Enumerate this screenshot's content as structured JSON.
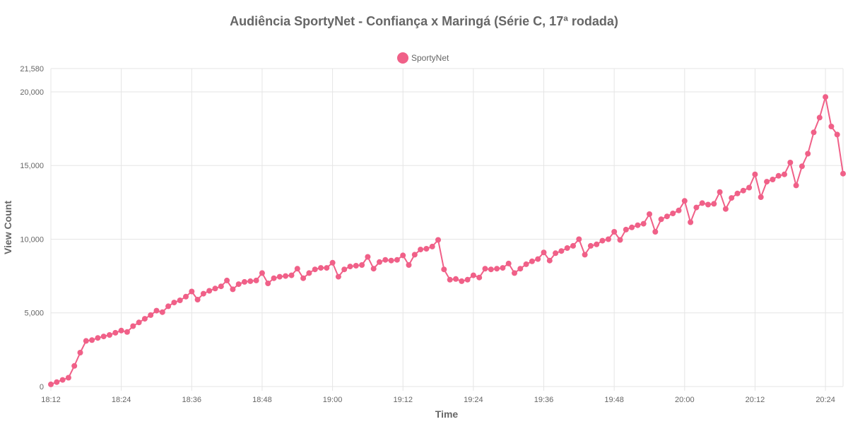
{
  "chart_data": {
    "type": "line",
    "title": "Audiência SportyNet - Confiança x Maringá (Série C, 17ª rodada)",
    "xlabel": "Time",
    "ylabel": "View Count",
    "x_start": "18:12",
    "x_step_minutes": 1,
    "x_ticks": [
      "18:12",
      "18:24",
      "18:36",
      "18:48",
      "19:00",
      "19:12",
      "19:24",
      "19:36",
      "19:48",
      "20:00",
      "20:12",
      "20:24"
    ],
    "y_ticks": [
      0,
      5000,
      10000,
      15000,
      20000,
      21580
    ],
    "y_tick_labels": [
      "0",
      "5,000",
      "10,000",
      "15,000",
      "20,000",
      "21,580"
    ],
    "ylim": [
      0,
      21580
    ],
    "grid": true,
    "legend_position": "top",
    "colors": {
      "series": "#f06088",
      "grid": "#e5e5e5",
      "text": "#666666"
    },
    "series": [
      {
        "name": "SportyNet",
        "values": [
          150,
          300,
          450,
          600,
          1400,
          2300,
          3100,
          3150,
          3300,
          3400,
          3500,
          3650,
          3800,
          3700,
          4100,
          4350,
          4600,
          4850,
          5150,
          5050,
          5450,
          5700,
          5850,
          6100,
          6450,
          5900,
          6300,
          6500,
          6650,
          6800,
          7200,
          6600,
          6950,
          7100,
          7150,
          7200,
          7700,
          7000,
          7350,
          7450,
          7500,
          7550,
          8000,
          7350,
          7700,
          7950,
          8050,
          8050,
          8400,
          7450,
          7950,
          8150,
          8200,
          8250,
          8800,
          8000,
          8450,
          8600,
          8550,
          8600,
          8900,
          8250,
          8950,
          9300,
          9350,
          9500,
          9950,
          7950,
          7250,
          7300,
          7150,
          7250,
          7550,
          7400,
          8000,
          7950,
          8000,
          8050,
          8350,
          7700,
          8000,
          8300,
          8500,
          8650,
          9100,
          8550,
          9050,
          9200,
          9400,
          9550,
          10000,
          8950,
          9550,
          9650,
          9900,
          10000,
          10500,
          9950,
          10650,
          10800,
          10950,
          11050,
          11700,
          10500,
          11350,
          11550,
          11750,
          11950,
          12600,
          11150,
          12150,
          12450,
          12350,
          12400,
          13200,
          12050,
          12800,
          13100,
          13300,
          13500,
          14400,
          12850,
          13900,
          14050,
          14300,
          14400,
          15200,
          13650,
          14950,
          15800,
          17250,
          18250,
          19650,
          17650,
          17100,
          14450
        ]
      }
    ]
  }
}
